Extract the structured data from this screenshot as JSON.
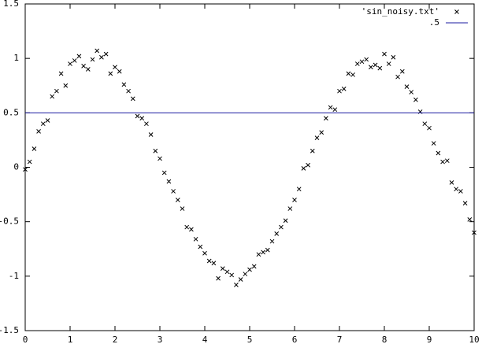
{
  "chart_data": {
    "type": "scatter",
    "xlim": [
      0,
      10
    ],
    "ylim": [
      -1.5,
      1.5
    ],
    "xticks": [
      0,
      1,
      2,
      3,
      4,
      5,
      6,
      7,
      8,
      9,
      10
    ],
    "yticks": [
      -1.5,
      -1,
      -0.5,
      0,
      0.5,
      1,
      1.5
    ],
    "legend": "top-right",
    "series": [
      {
        "name": "'sin_noisy.txt'",
        "type": "scatter",
        "color": "#000000",
        "x": [
          0,
          0.1,
          0.2,
          0.3,
          0.4,
          0.5,
          0.6,
          0.7,
          0.8,
          0.9,
          1,
          1.1,
          1.2,
          1.3,
          1.4,
          1.5,
          1.6,
          1.7,
          1.8,
          1.9,
          2,
          2.1,
          2.2,
          2.3,
          2.4,
          2.5,
          2.6,
          2.7,
          2.8,
          2.9,
          3,
          3.1,
          3.2,
          3.3,
          3.4,
          3.5,
          3.6,
          3.7,
          3.8,
          3.9,
          4,
          4.1,
          4.2,
          4.3,
          4.4,
          4.5,
          4.6,
          4.7,
          4.8,
          4.9,
          5,
          5.1,
          5.2,
          5.3,
          5.4,
          5.5,
          5.6,
          5.7,
          5.8,
          5.9,
          6,
          6.1,
          6.2,
          6.3,
          6.4,
          6.5,
          6.6,
          6.7,
          6.8,
          6.9,
          7,
          7.1,
          7.2,
          7.3,
          7.4,
          7.5,
          7.6,
          7.7,
          7.8,
          7.9,
          8,
          8.1,
          8.2,
          8.3,
          8.4,
          8.5,
          8.6,
          8.7,
          8.8,
          8.9,
          9,
          9.1,
          9.2,
          9.3,
          9.4,
          9.5,
          9.6,
          9.7,
          9.8,
          9.9,
          10
        ],
        "values": [
          -0.02,
          0.05,
          0.17,
          0.33,
          0.4,
          0.43,
          0.65,
          0.7,
          0.86,
          0.75,
          0.95,
          0.98,
          1.02,
          0.93,
          0.9,
          0.99,
          1.07,
          1.01,
          1.04,
          0.86,
          0.92,
          0.88,
          0.76,
          0.7,
          0.63,
          0.47,
          0.45,
          0.4,
          0.3,
          0.15,
          0.08,
          -0.05,
          -0.13,
          -0.22,
          -0.3,
          -0.38,
          -0.55,
          -0.57,
          -0.66,
          -0.73,
          -0.79,
          -0.86,
          -0.88,
          -1.02,
          -0.93,
          -0.96,
          -0.99,
          -1.08,
          -1.03,
          -0.98,
          -0.94,
          -0.91,
          -0.8,
          -0.78,
          -0.76,
          -0.68,
          -0.61,
          -0.55,
          -0.49,
          -0.38,
          -0.3,
          -0.2,
          -0.01,
          0.02,
          0.15,
          0.27,
          0.32,
          0.45,
          0.55,
          0.53,
          0.7,
          0.72,
          0.86,
          0.85,
          0.95,
          0.97,
          0.99,
          0.92,
          0.94,
          0.91,
          1.04,
          0.95,
          1.01,
          0.83,
          0.88,
          0.74,
          0.69,
          0.62,
          0.51,
          0.4,
          0.36,
          0.22,
          0.13,
          0.05,
          0.06,
          -0.14,
          -0.2,
          -0.22,
          -0.33,
          -0.48,
          -0.6
        ]
      },
      {
        "name": ".5",
        "type": "line",
        "color": "#1a1aa0",
        "x": [
          0,
          10
        ],
        "values": [
          0.5,
          0.5
        ]
      }
    ]
  }
}
